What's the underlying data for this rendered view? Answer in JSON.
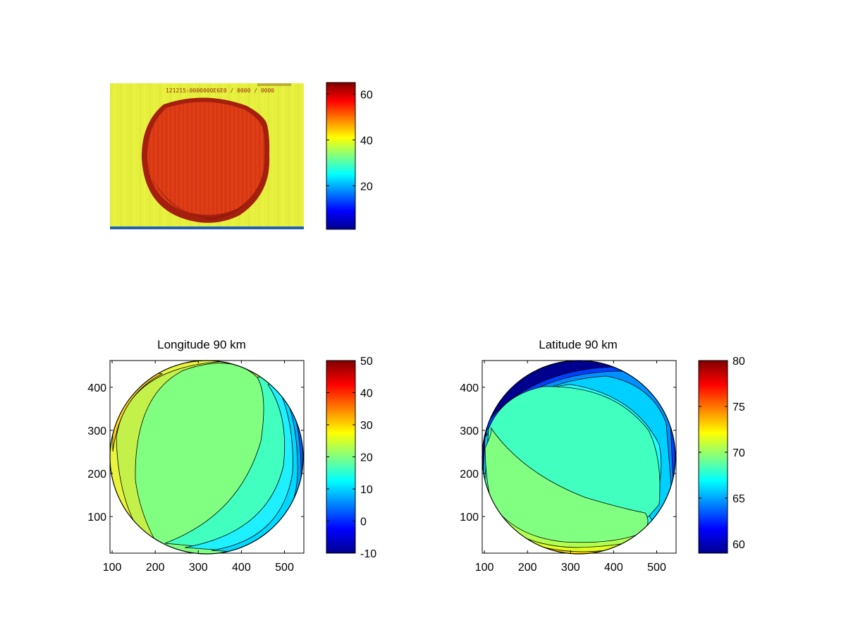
{
  "colormap": [
    "#00008f",
    "#0000ff",
    "#0080ff",
    "#00ffff",
    "#80ff80",
    "#ffff00",
    "#ff8000",
    "#ff0000",
    "#800000"
  ],
  "chart_data": [
    {
      "type": "heatmap",
      "title": "",
      "description": "raw image",
      "colorbar": {
        "min": 1,
        "max": 65,
        "ticks": [
          20,
          40,
          60
        ]
      },
      "image_text": "121215:0000000E6E0 / 0000 / 0000",
      "corner_text": "0000000000000000",
      "colors": {
        "background": "#e6f03c",
        "disc": "#dc3a14",
        "disc_edge": "#a51f0f",
        "bottom_strip": "#1f5fb4"
      }
    },
    {
      "type": "heatmap",
      "title": "Longitude 90 km",
      "xlim": [
        95,
        545
      ],
      "ylim": [
        15,
        462
      ],
      "xticks": [
        100,
        200,
        300,
        400,
        500
      ],
      "yticks": [
        100,
        200,
        300,
        400
      ],
      "colorbar": {
        "min": -10,
        "max": 50,
        "ticks": [
          -10,
          0,
          10,
          20,
          30,
          40,
          50
        ]
      },
      "contour_levels": [
        27,
        25,
        22,
        20,
        17,
        14,
        11,
        8,
        5,
        2
      ]
    },
    {
      "type": "heatmap",
      "title": "Latitude 90 km",
      "xlim": [
        95,
        545
      ],
      "ylim": [
        15,
        462
      ],
      "xticks": [
        100,
        200,
        300,
        400,
        500
      ],
      "yticks": [
        100,
        200,
        300,
        400
      ],
      "colorbar": {
        "min": 59,
        "max": 80,
        "ticks": [
          60,
          65,
          70,
          75,
          80
        ]
      },
      "contour_levels": [
        66.5,
        65.5,
        64.5,
        63.5,
        62.5,
        61.5,
        68,
        68.8,
        69.5,
        70.3,
        71,
        71.8,
        72.6
      ]
    }
  ]
}
